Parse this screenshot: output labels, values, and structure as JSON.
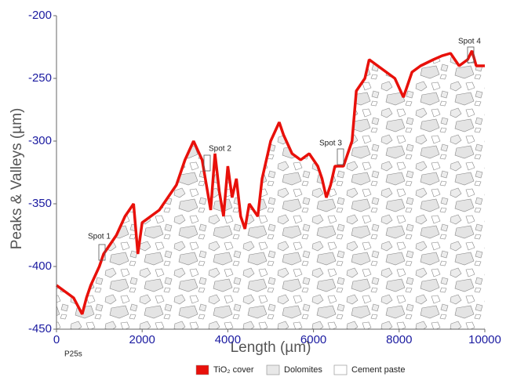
{
  "chart_data": {
    "type": "line",
    "x_label": "Length (µm)",
    "y_label": "Peaks & Valleys (µm)",
    "sample": "P25s",
    "annotations": [
      "Spot 1",
      "Spot 2",
      "Spot 3",
      "Spot 4"
    ],
    "x": [
      0,
      200,
      400,
      600,
      700,
      800,
      1000,
      1100,
      1200,
      1400,
      1600,
      1800,
      1900,
      2000,
      2200,
      2400,
      2600,
      2800,
      3000,
      3200,
      3400,
      3500,
      3600,
      3700,
      3800,
      3900,
      4000,
      4100,
      4200,
      4300,
      4400,
      4500,
      4700,
      4800,
      5000,
      5200,
      5300,
      5500,
      5700,
      5900,
      6100,
      6200,
      6300,
      6400,
      6500,
      6700,
      6900,
      7000,
      7200,
      7300,
      7500,
      7700,
      7900,
      8100,
      8300,
      8500,
      8800,
      9000,
      9200,
      9400,
      9600,
      9700,
      9800,
      10000
    ],
    "series": [
      {
        "name": "TiO₂ cover",
        "color": "#e8100a",
        "values": [
          -415,
          -420,
          -425,
          -438,
          -425,
          -415,
          -400,
          -390,
          -385,
          -375,
          -360,
          -350,
          -390,
          -365,
          -360,
          -355,
          -345,
          -335,
          -315,
          -300,
          -315,
          -335,
          -355,
          -310,
          -340,
          -360,
          -320,
          -345,
          -330,
          -360,
          -370,
          -350,
          -360,
          -330,
          -300,
          -285,
          -295,
          -310,
          -315,
          -310,
          -320,
          -330,
          -345,
          -335,
          -320,
          -320,
          -300,
          -260,
          -250,
          -235,
          -240,
          -245,
          -250,
          -265,
          -245,
          -240,
          -235,
          -232,
          -230,
          -240,
          -235,
          -228,
          -240,
          -240
        ]
      }
    ],
    "regions": [
      {
        "name": "Dolomites",
        "color": "#e8e8e8"
      },
      {
        "name": "Cement paste",
        "color": "#ffffff"
      }
    ],
    "xlim": [
      0,
      10000
    ],
    "xticks": [
      0,
      2000,
      4000,
      6000,
      8000,
      10000
    ],
    "ylim": [
      -450,
      -200
    ],
    "yticks": [
      -450,
      -400,
      -350,
      -300,
      -250,
      -200
    ]
  }
}
